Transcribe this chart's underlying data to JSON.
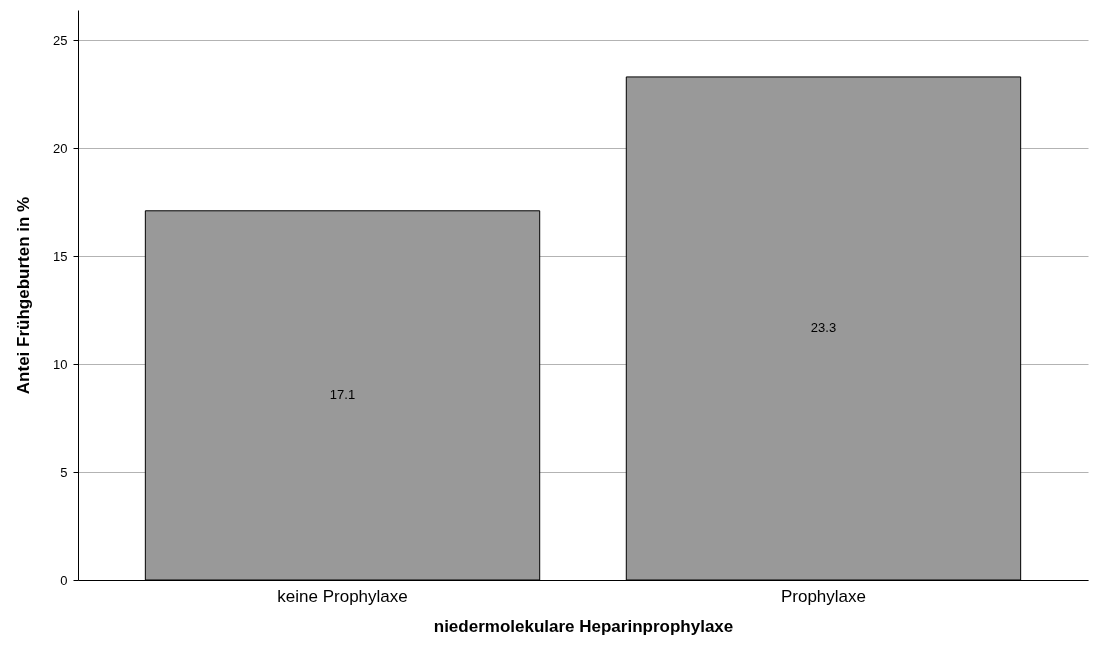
{
  "chart_data": {
    "type": "bar",
    "xlabel": "niedermolekulare Heparinprophylaxe",
    "ylabel": "Antei Frühgeburten in %",
    "categories": [
      "keine Prophylaxe",
      "Prophylaxe"
    ],
    "values": [
      17.1,
      23.3
    ],
    "color": "#999999",
    "ylim": [
      0,
      26.4
    ],
    "yticks": [
      0,
      5,
      10,
      15,
      20,
      25
    ],
    "grid": "y",
    "data_labels": true
  }
}
